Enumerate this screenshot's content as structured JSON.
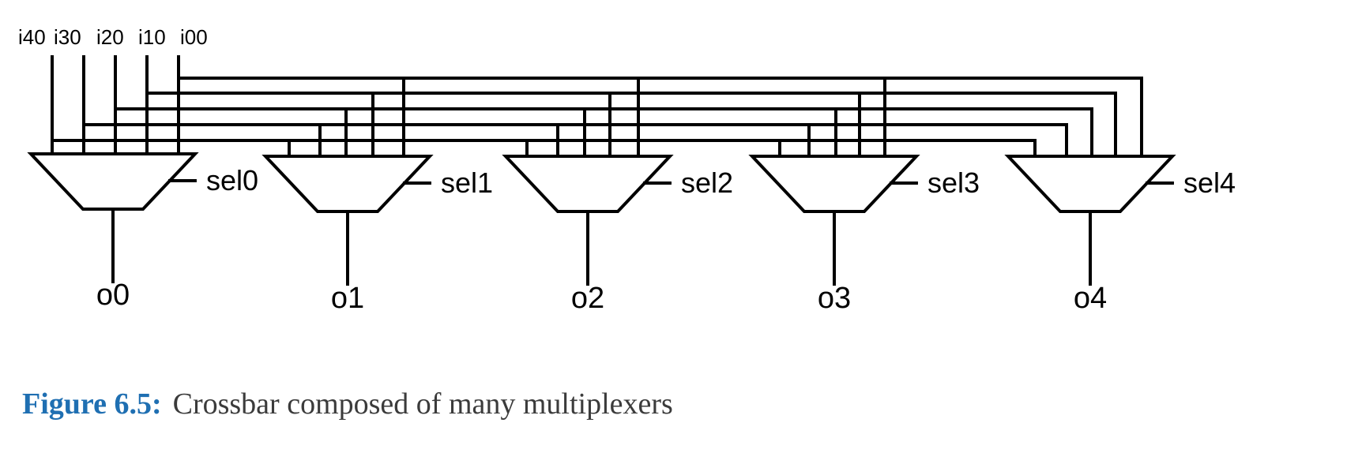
{
  "diagram": {
    "inputs": [
      "i40",
      "i30",
      "i20",
      "i10",
      "i00"
    ],
    "selects": [
      "sel0",
      "sel1",
      "sel2",
      "sel3",
      "sel4"
    ],
    "outputs": [
      "o0",
      "o1",
      "o2",
      "o3",
      "o4"
    ],
    "component": "multiplexer",
    "mux_count": 5,
    "inputs_per_mux": 5
  },
  "caption": {
    "label": "Figure 6.5:",
    "text": "Crossbar composed of many multiplexers"
  }
}
